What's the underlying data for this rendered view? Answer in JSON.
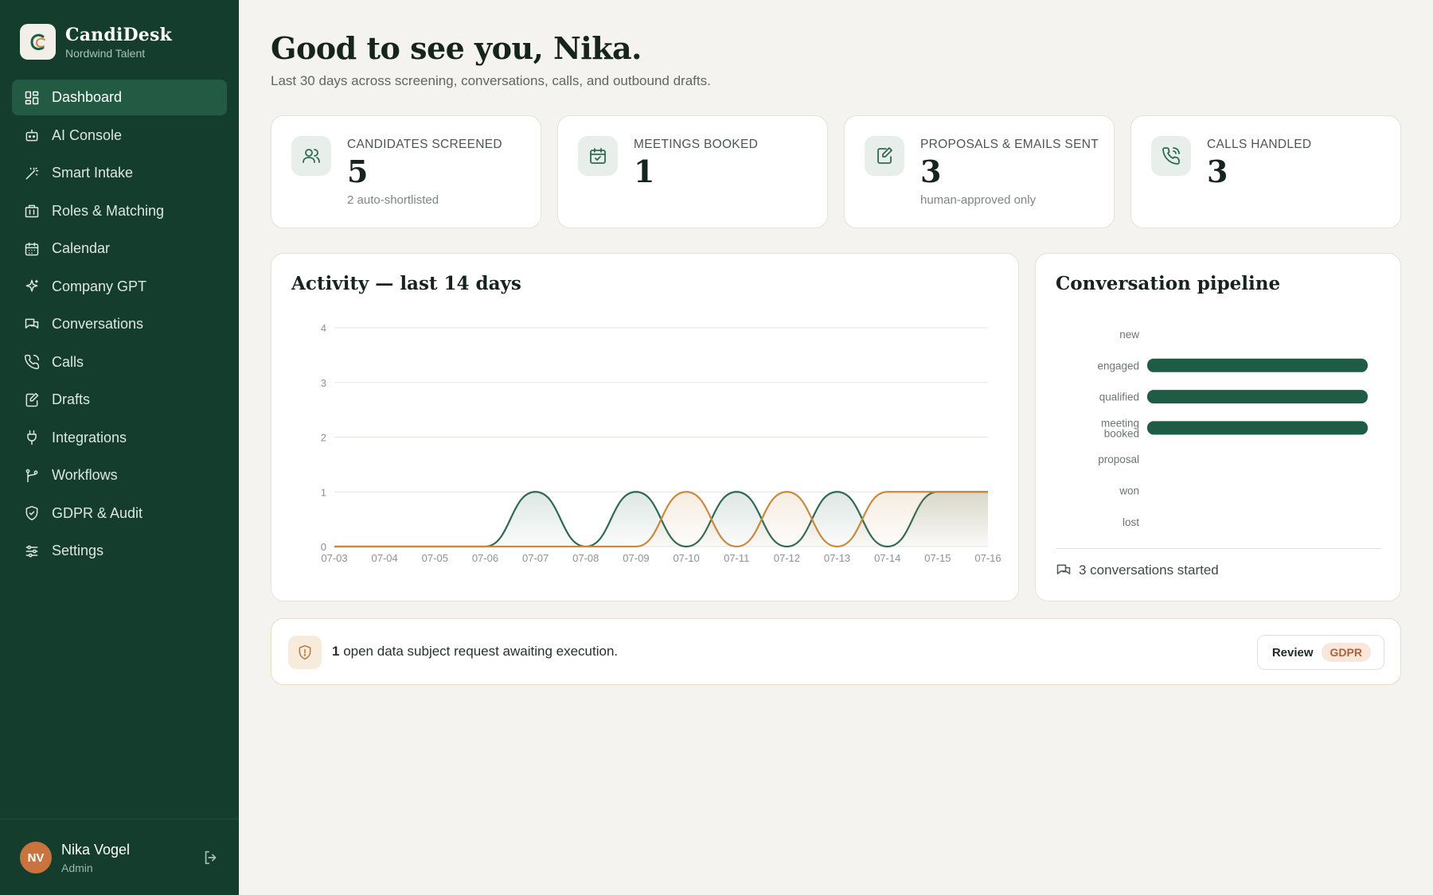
{
  "brand": {
    "name": "CandiDesk",
    "org": "Nordwind Talent"
  },
  "nav": [
    {
      "label": "Dashboard",
      "icon": "dashboard-icon",
      "active": true
    },
    {
      "label": "AI Console",
      "icon": "bot-icon"
    },
    {
      "label": "Smart Intake",
      "icon": "wand-icon"
    },
    {
      "label": "Roles & Matching",
      "icon": "building-icon"
    },
    {
      "label": "Calendar",
      "icon": "calendar-icon"
    },
    {
      "label": "Company GPT",
      "icon": "sparkle-icon"
    },
    {
      "label": "Conversations",
      "icon": "chat-icon"
    },
    {
      "label": "Calls",
      "icon": "phone-icon"
    },
    {
      "label": "Drafts",
      "icon": "edit-icon"
    },
    {
      "label": "Integrations",
      "icon": "plug-icon"
    },
    {
      "label": "Workflows",
      "icon": "workflow-icon"
    },
    {
      "label": "GDPR & Audit",
      "icon": "shield-icon"
    },
    {
      "label": "Settings",
      "icon": "sliders-icon"
    }
  ],
  "user": {
    "initials": "NV",
    "name": "Nika Vogel",
    "role": "Admin"
  },
  "header": {
    "greeting": "Good to see you, Nika.",
    "subtitle": "Last 30 days across screening, conversations, calls, and outbound drafts."
  },
  "stats": [
    {
      "label": "CANDIDATES SCREENED",
      "value": "5",
      "note": "2 auto-shortlisted",
      "icon": "users-icon"
    },
    {
      "label": "MEETINGS BOOKED",
      "value": "1",
      "note": "",
      "icon": "calendar-check-icon"
    },
    {
      "label": "PROPOSALS & EMAILS SENT",
      "value": "3",
      "note": "human-approved only",
      "icon": "edit-icon"
    },
    {
      "label": "CALLS HANDLED",
      "value": "3",
      "note": "",
      "icon": "phone-icon"
    }
  ],
  "activity": {
    "title": "Activity — last 14 days"
  },
  "pipeline": {
    "title": "Conversation pipeline",
    "footer": "3 conversations started"
  },
  "alert": {
    "count": "1",
    "text": " open data subject request awaiting execution.",
    "button_label": "Review",
    "badge": "GDPR"
  },
  "colors": {
    "sidebar": "#153d2e",
    "accent": "#1e5c45",
    "series_green": "#2e6a52",
    "series_orange": "#c98a40",
    "warning": "#c9743e"
  },
  "chart_data": [
    {
      "type": "area",
      "title": "Activity — last 14 days",
      "x": [
        "07-03",
        "07-04",
        "07-05",
        "07-06",
        "07-07",
        "07-08",
        "07-09",
        "07-10",
        "07-11",
        "07-12",
        "07-13",
        "07-14",
        "07-15",
        "07-16"
      ],
      "ylim": [
        0,
        4
      ],
      "yticks": [
        0,
        1,
        2,
        3,
        4
      ],
      "grid": true,
      "series": [
        {
          "values": [
            0,
            0,
            0,
            0,
            1,
            0,
            1,
            0,
            1,
            0,
            1,
            0,
            1,
            1
          ],
          "color": "#2e6a52"
        },
        {
          "values": [
            0,
            0,
            0,
            0,
            0,
            0,
            0,
            1,
            0,
            1,
            0,
            1,
            1,
            1
          ],
          "color": "#c98a40"
        }
      ]
    },
    {
      "type": "bar",
      "title": "Conversation pipeline",
      "orientation": "horizontal",
      "categories": [
        "new",
        "engaged",
        "qualified",
        "meeting booked",
        "proposal",
        "won",
        "lost"
      ],
      "values": [
        0,
        1,
        1,
        1,
        0,
        0,
        0
      ],
      "xlim": [
        0,
        1
      ],
      "color": "#1e5c45"
    }
  ]
}
